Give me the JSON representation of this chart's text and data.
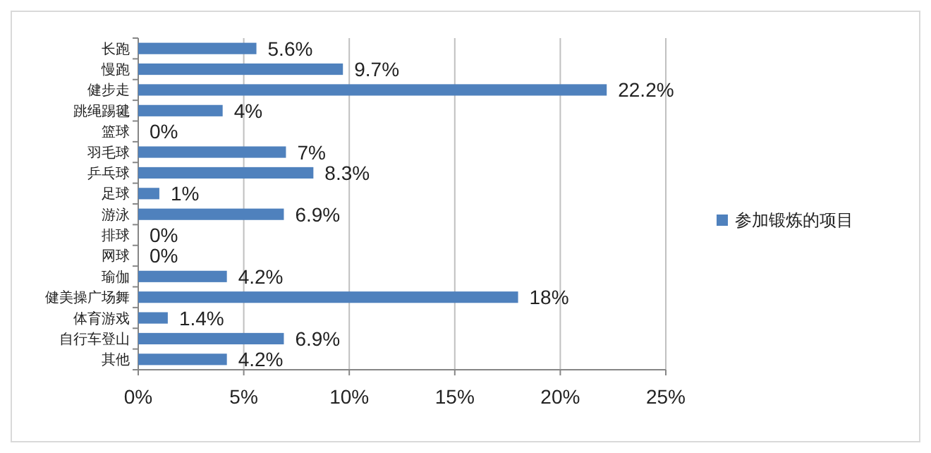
{
  "chart_data": {
    "type": "bar",
    "orientation": "horizontal",
    "categories": [
      "长跑",
      "慢跑",
      "健步走",
      "跳绳踢毽",
      "篮球",
      "羽毛球",
      "乒乓球",
      "足球",
      "游泳",
      "排球",
      "网球",
      "瑜伽",
      "健美操广场舞",
      "体育游戏",
      "自行车登山",
      "其他"
    ],
    "series": [
      {
        "name": "参加锻炼的项目",
        "color": "#4f81bd",
        "values": [
          5.6,
          9.7,
          22.2,
          4,
          0,
          7,
          8.3,
          1,
          6.9,
          0,
          0,
          4.2,
          18,
          1.4,
          6.9,
          4.2
        ]
      }
    ],
    "xlim": [
      0,
      25
    ],
    "xticks": [
      {
        "value": 0,
        "label": "0%"
      },
      {
        "value": 5,
        "label": "5%"
      },
      {
        "value": 10,
        "label": "10%"
      },
      {
        "value": 15,
        "label": "15%"
      },
      {
        "value": 20,
        "label": "20%"
      },
      {
        "value": 25,
        "label": "25%"
      }
    ],
    "value_labels": [
      "5.6%",
      "9.7%",
      "22.2%",
      "4%",
      "0%",
      "7%",
      "8.3%",
      "1%",
      "6.9%",
      "0%",
      "0%",
      "4.2%",
      "18%",
      "1.4%",
      "6.9%",
      "4.2%"
    ],
    "grid": "x",
    "legend": "right"
  }
}
